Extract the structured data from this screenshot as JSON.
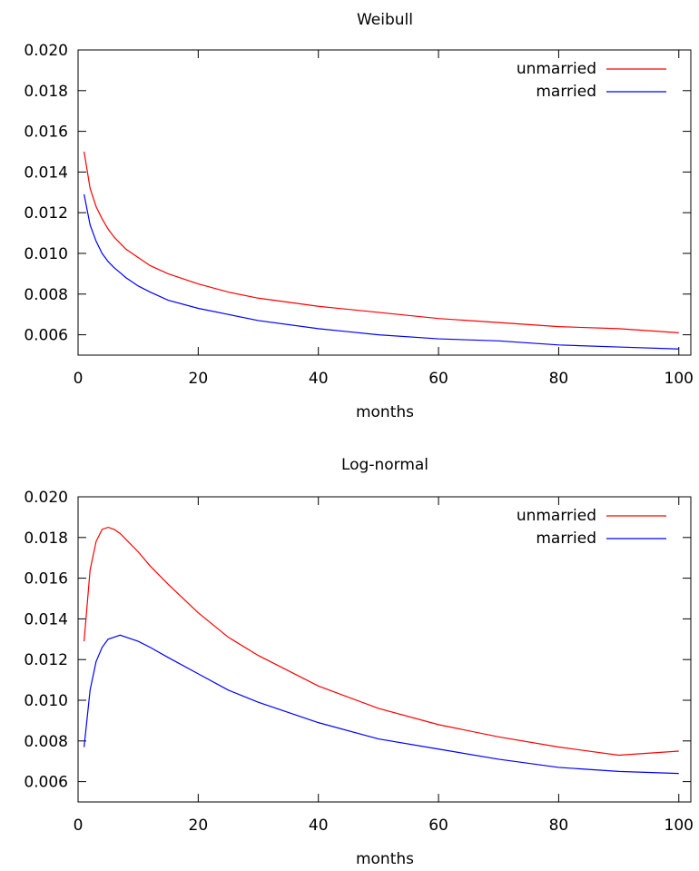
{
  "chart_data": [
    {
      "type": "line",
      "title": "Weibull",
      "xlabel": "months",
      "ylabel": "",
      "xlim": [
        0,
        102
      ],
      "ylim": [
        0.005,
        0.02
      ],
      "xticks": [
        0,
        20,
        40,
        60,
        80,
        100
      ],
      "yticks": [
        0.006,
        0.008,
        0.01,
        0.012,
        0.014,
        0.016,
        0.018,
        0.02
      ],
      "grid": false,
      "legend": "top-right",
      "series": [
        {
          "name": "unmarried",
          "color": "#ff0000",
          "x": [
            1,
            2,
            3,
            4,
            5,
            6,
            8,
            10,
            12,
            15,
            20,
            25,
            30,
            40,
            50,
            60,
            70,
            80,
            90,
            100
          ],
          "y": [
            0.015,
            0.0132,
            0.0123,
            0.0117,
            0.0112,
            0.0108,
            0.0102,
            0.0098,
            0.0094,
            0.009,
            0.0085,
            0.0081,
            0.0078,
            0.0074,
            0.0071,
            0.0068,
            0.0066,
            0.0064,
            0.0063,
            0.0061
          ]
        },
        {
          "name": "married",
          "color": "#0000ff",
          "x": [
            1,
            2,
            3,
            4,
            5,
            6,
            8,
            10,
            12,
            15,
            20,
            25,
            30,
            40,
            50,
            60,
            70,
            80,
            90,
            100
          ],
          "y": [
            0.0129,
            0.0114,
            0.0106,
            0.01,
            0.0096,
            0.0093,
            0.0088,
            0.0084,
            0.0081,
            0.0077,
            0.0073,
            0.007,
            0.0067,
            0.0063,
            0.006,
            0.0058,
            0.0057,
            0.0055,
            0.0054,
            0.0053
          ]
        }
      ]
    },
    {
      "type": "line",
      "title": "Log-normal",
      "xlabel": "months",
      "ylabel": "",
      "xlim": [
        0,
        102
      ],
      "ylim": [
        0.005,
        0.02
      ],
      "xticks": [
        0,
        20,
        40,
        60,
        80,
        100
      ],
      "yticks": [
        0.006,
        0.008,
        0.01,
        0.012,
        0.014,
        0.016,
        0.018,
        0.02
      ],
      "grid": false,
      "legend": "top-right",
      "series": [
        {
          "name": "unmarried",
          "color": "#ff0000",
          "x": [
            1,
            2,
            3,
            4,
            5,
            6,
            7,
            8,
            10,
            12,
            15,
            20,
            25,
            30,
            40,
            50,
            60,
            70,
            80,
            90,
            100
          ],
          "y": [
            0.0129,
            0.0164,
            0.0178,
            0.0184,
            0.0185,
            0.0184,
            0.0182,
            0.0179,
            0.0173,
            0.0166,
            0.0157,
            0.0143,
            0.0131,
            0.0122,
            0.0107,
            0.0096,
            0.0088,
            0.0082,
            0.0077,
            0.0073,
            0.0075
          ]
        },
        {
          "name": "married",
          "color": "#0000ff",
          "x": [
            1,
            2,
            3,
            4,
            5,
            6,
            7,
            8,
            10,
            12,
            15,
            20,
            25,
            30,
            40,
            50,
            60,
            70,
            80,
            90,
            100
          ],
          "y": [
            0.0077,
            0.0105,
            0.0119,
            0.0126,
            0.013,
            0.0131,
            0.0132,
            0.0131,
            0.0129,
            0.0126,
            0.0121,
            0.0113,
            0.0105,
            0.0099,
            0.0089,
            0.0081,
            0.0076,
            0.0071,
            0.0067,
            0.0065,
            0.0064
          ]
        }
      ]
    }
  ]
}
